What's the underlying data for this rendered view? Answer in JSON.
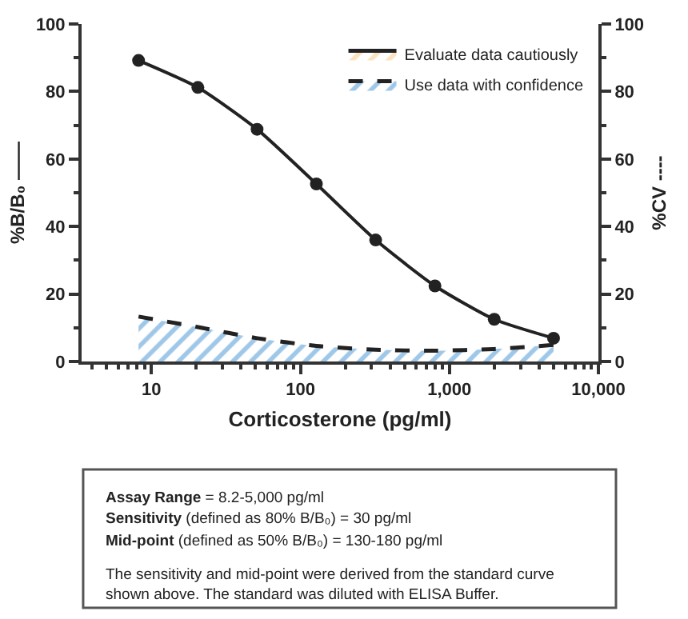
{
  "chart_data": {
    "type": "line",
    "xlabel": "Corticosterone (pg/ml)",
    "ylabel": "%B/B₀ ——",
    "y2label": "%CV ----",
    "x": [
      8.2,
      20.5,
      51.2,
      128,
      320,
      800,
      2000,
      5000
    ],
    "series": [
      {
        "color": "#222222",
        "marker": "circle",
        "line_style": "solid",
        "values": [
          89.2,
          81.2,
          68.8,
          52.6,
          36.0,
          22.4,
          12.5,
          6.9
        ]
      },
      {
        "type": "area",
        "name": "Evaluate data cautiously",
        "color": "#f5c77e",
        "axis": "y2",
        "values": [
          null,
          null,
          null,
          null,
          null,
          null,
          null,
          null
        ]
      },
      {
        "type": "area",
        "name": "Use data with confidence",
        "color": "#3d8fd1",
        "axis": "y2",
        "marker": "none",
        "line_style": "dashed",
        "values": [
          13.3,
          10.2,
          6.9,
          4.6,
          3.5,
          3.2,
          3.7,
          4.9
        ]
      }
    ],
    "log": "x",
    "xlim": [
      3.4,
      10000
    ],
    "xticks": [
      {
        "value": 10,
        "label": "10"
      },
      {
        "value": 100,
        "label": "100"
      },
      {
        "value": 1000,
        "label": "1,000"
      },
      {
        "value": 10000,
        "label": "10,000"
      }
    ],
    "ylim": [
      0,
      100
    ],
    "yticks": [
      0,
      20,
      40,
      60,
      80,
      100
    ],
    "y2lim": [
      0,
      100
    ],
    "y2ticks": [
      0,
      20,
      40,
      60,
      80,
      100
    ],
    "legend": "top right",
    "annotations": [
      "Assay Range = 8.2-5,000 pg/ml",
      "Sensitivity (defined as 80% B/B₀) = 30 pg/ml",
      "Mid-point (defined as 50% B/B₀) = 130-180 pg/ml",
      "The sensitivity and mid-point were derived from the standard curve shown above. The standard was diluted with ELISA Buffer."
    ]
  }
}
